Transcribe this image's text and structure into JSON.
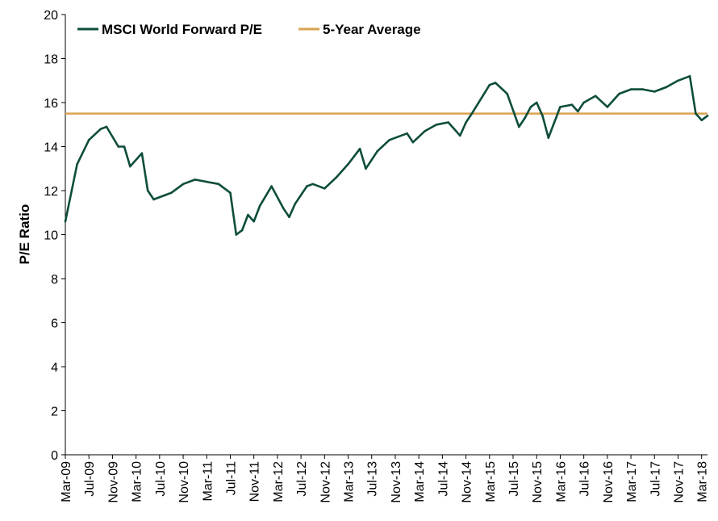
{
  "chart_data": {
    "type": "line",
    "title": "",
    "xlabel": "",
    "ylabel": "P/E Ratio",
    "ylim": [
      0,
      20
    ],
    "yticks": [
      0,
      2,
      4,
      6,
      8,
      10,
      12,
      14,
      16,
      18,
      20
    ],
    "grid": false,
    "legend_position": "top-left",
    "x_tick_labels": [
      "Mar-09",
      "Jul-09",
      "Nov-09",
      "Mar-10",
      "Jul-10",
      "Nov-10",
      "Mar-11",
      "Jul-11",
      "Nov-11",
      "Mar-12",
      "Jul-12",
      "Nov-12",
      "Mar-13",
      "Jul-13",
      "Nov-13",
      "Mar-14",
      "Jul-14",
      "Nov-14",
      "Mar-15",
      "Jul-15",
      "Nov-15",
      "Mar-16",
      "Jul-16",
      "Nov-16",
      "Mar-17",
      "Jul-17",
      "Nov-17",
      "Mar-18"
    ],
    "series": [
      {
        "name": "MSCI World Forward P/E",
        "color": "#0e4d3c",
        "x": [
          "Mar-09",
          "May-09",
          "Jul-09",
          "Sep-09",
          "Oct-09",
          "Dec-09",
          "Jan-10",
          "Feb-10",
          "Apr-10",
          "May-10",
          "Jun-10",
          "Aug-10",
          "Sep-10",
          "Nov-10",
          "Jan-11",
          "Mar-11",
          "May-11",
          "Jul-11",
          "Aug-11",
          "Sep-11",
          "Oct-11",
          "Nov-11",
          "Dec-11",
          "Feb-12",
          "Apr-12",
          "May-12",
          "Jun-12",
          "Aug-12",
          "Sep-12",
          "Nov-12",
          "Jan-13",
          "Mar-13",
          "May-13",
          "Jun-13",
          "Aug-13",
          "Oct-13",
          "Jan-14",
          "Feb-14",
          "Apr-14",
          "Jun-14",
          "Aug-14",
          "Oct-14",
          "Nov-14",
          "Dec-14",
          "Mar-15",
          "Apr-15",
          "Jun-15",
          "Aug-15",
          "Sep-15",
          "Oct-15",
          "Nov-15",
          "Dec-15",
          "Jan-16",
          "Feb-16",
          "Mar-16",
          "May-16",
          "Jun-16",
          "Jul-16",
          "Sep-16",
          "Nov-16",
          "Jan-17",
          "Mar-17",
          "May-17",
          "Jul-17",
          "Sep-17",
          "Nov-17",
          "Jan-18",
          "Feb-18",
          "Mar-18",
          "Apr-18"
        ],
        "values": [
          10.6,
          13.2,
          14.3,
          14.8,
          14.9,
          14.0,
          14.0,
          13.1,
          13.7,
          12.0,
          11.6,
          11.8,
          11.9,
          12.3,
          12.5,
          12.4,
          12.3,
          11.9,
          10.0,
          10.2,
          10.9,
          10.6,
          11.3,
          12.2,
          11.2,
          10.8,
          11.4,
          12.2,
          12.3,
          12.1,
          12.6,
          13.2,
          13.9,
          13.0,
          13.8,
          14.3,
          14.6,
          14.2,
          14.7,
          15.0,
          15.1,
          14.5,
          15.1,
          15.5,
          16.8,
          16.9,
          16.4,
          14.9,
          15.3,
          15.8,
          16.0,
          15.4,
          14.4,
          15.1,
          15.8,
          15.9,
          15.6,
          16.0,
          16.3,
          15.8,
          16.4,
          16.6,
          16.6,
          16.5,
          16.7,
          17.0,
          17.2,
          15.5,
          15.2,
          15.4
        ]
      },
      {
        "name": "5-Year Average",
        "color": "#d9a34f",
        "x": [
          "Mar-09",
          "Apr-18"
        ],
        "values": [
          15.5,
          15.5
        ]
      }
    ]
  }
}
